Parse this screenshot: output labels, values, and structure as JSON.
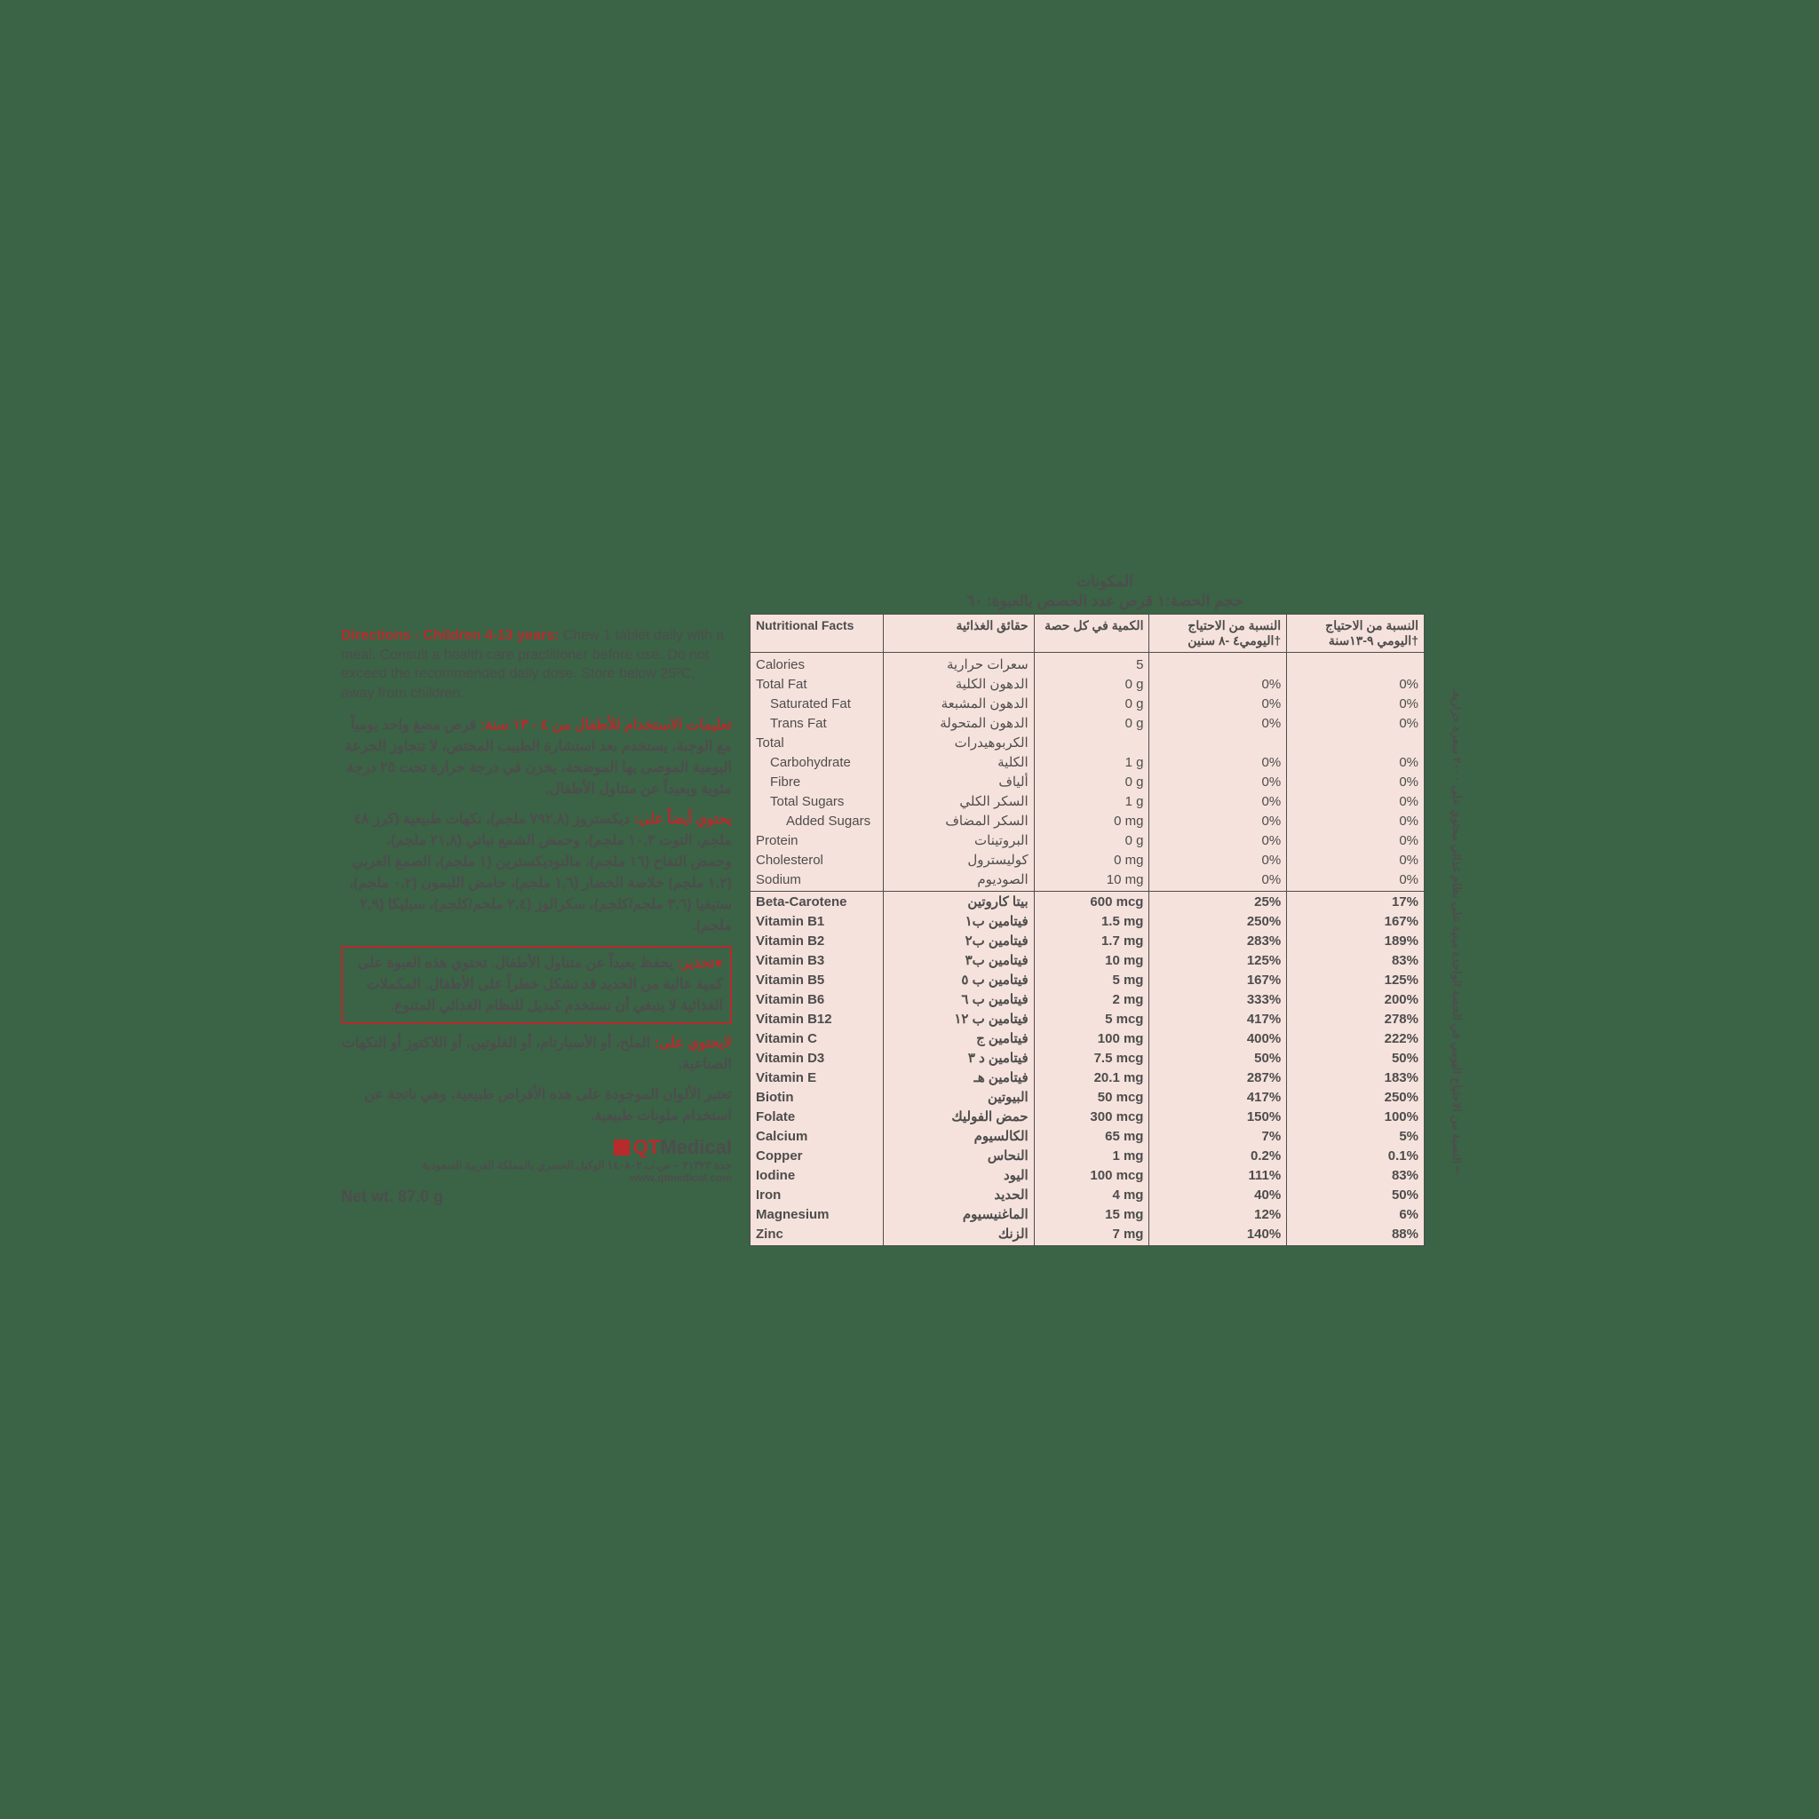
{
  "directions": {
    "en_heading": "Directions - Children 4-13 years:",
    "en_body": " Chew 1 tablet daily with a meal. Consult a health care practitioner before use. Do not exceed the recommended daily dose. Store below 25ºC, away from children.",
    "ar_heading_1": "تعليمات الاستخدام للأطفال من ٤ - ١٣ سنة:",
    "ar_body_1": " قرص مضغ واحد يومياً مع الوجبة، يستخدم بعد استشارة الطبيب المختص، لا تتجاوز الجرعة اليومية الموصى بها الموضحة، يخزن في درجة حرارة تحت ٢٥ درجة مئوية وبعيداً عن متناول الأطفال.",
    "ar_heading_2": "يحتوي أيضاً على:",
    "ar_body_2": " ديكستروز (٧٩٢,٨ ملجم)، نكهات طبيعية (كرز ٤٨ ملجم، التوت ١٠,٣ ملجم)، وحمض الشمع نباتي (٢١,٨ ملجم)، وحمض التفاح (١٦ ملجم)، مالتوديكسترين (١ ملجم)، الصمغ العربي (١,٢ ملجم) خلاصة الخضار (١,٦ ملجم)، حامض الليمون (٠,٢ ملجم)، ستيفيا (٣,٦ ملجم/كلجم)، سكرالوز (٢,٤ ملجم/كلجم)، سيليكا (٢,٩ ملجم).",
    "warn_heading": "●تحذير:",
    "warn_body": " يحفظ بعيداً عن متناول الأطفال. تحتوي هذه العبوة على كمية عالية من الحديد قد تشكل خطراً على الأطفال. المكملات الغذائية لا ينبغي أن تستخدم كبديل للنظام الغذائي المتنوع.",
    "ar_free_heading": "لايحتوي على:",
    "ar_free_body": " الملح، أو الأسبارتام، أو الغلوتين، أو اللاكتوز أو النكهات الصناعية.",
    "ar_colors": "تعتبر الألوان الموجودة على هذه الأقراص طبيعية، وهي ناتجة عن استخدام ملونات طبيعية.",
    "distributor": "جدة ٢١٣٢٣ – ص.ب.١٤٠٨٠٢ الوكيل الحصري بالمملكة العربية السعودية",
    "website": "www.qtmedical.com",
    "logo_g": "QT",
    "logo_rest": "Medical",
    "net_wt": "Net wt. 87.0 g"
  },
  "table": {
    "title": "المكونات",
    "subtitle": "حجم الحصة:١ قرص عدد الحصص بالعبوة: ٦٠",
    "side_note": "†النسبة من الاحتياج اليومي في الحصة الواحدة مبنية على نظام غذائي محتوي على ٢٠٠٠ سعرة حرارية.",
    "headers": {
      "h1_en": "Nutritional Facts",
      "h1_ar": "حقائق الغذائية",
      "h2_ar": "الكمية في كل حصة",
      "h3_ar": "النسبة من الاحتياج اليومي٤ -٨ سنين†",
      "h4_ar": "النسبة من الاحتياج اليومي ٩-١٣سنة†"
    },
    "section1": [
      {
        "en": "Calories",
        "ar": "سعرات حرارية",
        "amt": "5",
        "dv1": "",
        "dv2": "",
        "indent": 0
      },
      {
        "en": "Total Fat",
        "ar": "الدهون الكلية",
        "amt": "0 g",
        "dv1": "0%",
        "dv2": "0%",
        "indent": 0
      },
      {
        "en": "Saturated Fat",
        "ar": "الدهون المشبعة",
        "amt": "0 g",
        "dv1": "0%",
        "dv2": "0%",
        "indent": 1
      },
      {
        "en": "Trans Fat",
        "ar": "الدهون المتحولة",
        "amt": "0 g",
        "dv1": "0%",
        "dv2": "0%",
        "indent": 1
      },
      {
        "en": "Total",
        "ar": "الكربوهيدرات",
        "amt": "",
        "dv1": "",
        "dv2": "",
        "indent": 0
      },
      {
        "en": "Carbohydrate",
        "ar": "الكلية",
        "amt": "1 g",
        "dv1": "0%",
        "dv2": "0%",
        "indent": 1
      },
      {
        "en": "Fibre",
        "ar": "ألياف",
        "amt": "0 g",
        "dv1": "0%",
        "dv2": "0%",
        "indent": 1
      },
      {
        "en": "Total Sugars",
        "ar": "السكر الكلي",
        "amt": "1 g",
        "dv1": "0%",
        "dv2": "0%",
        "indent": 1
      },
      {
        "en": "Added Sugars",
        "ar": "السكر المضاف",
        "amt": "0 mg",
        "dv1": "0%",
        "dv2": "0%",
        "indent": 2
      },
      {
        "en": "Protein",
        "ar": "البروتينات",
        "amt": "0 g",
        "dv1": "0%",
        "dv2": "0%",
        "indent": 0
      },
      {
        "en": "Cholesterol",
        "ar": "كوليسترول",
        "amt": "0 mg",
        "dv1": "0%",
        "dv2": "0%",
        "indent": 0
      },
      {
        "en": "Sodium",
        "ar": "الصوديوم",
        "amt": "10 mg",
        "dv1": "0%",
        "dv2": "0%",
        "indent": 0
      }
    ],
    "section2": [
      {
        "en": "Beta-Carotene",
        "ar": "بيتا كاروتين",
        "amt": "600 mcg",
        "dv1": "25%",
        "dv2": "17%"
      },
      {
        "en": "Vitamin B1",
        "ar": "فيتامين ب١",
        "amt": "1.5 mg",
        "dv1": "250%",
        "dv2": "167%"
      },
      {
        "en": "Vitamin B2",
        "ar": "فيتامين ب٢",
        "amt": "1.7 mg",
        "dv1": "283%",
        "dv2": "189%"
      },
      {
        "en": "Vitamin B3",
        "ar": "فيتامين ب٣",
        "amt": "10 mg",
        "dv1": "125%",
        "dv2": "83%"
      },
      {
        "en": "Vitamin B5",
        "ar": "فيتامين ب ٥",
        "amt": "5 mg",
        "dv1": "167%",
        "dv2": "125%"
      },
      {
        "en": "Vitamin B6",
        "ar": "فيتامين ب ٦",
        "amt": "2 mg",
        "dv1": "333%",
        "dv2": "200%"
      },
      {
        "en": "Vitamin B12",
        "ar": "فيتامين ب ١٢",
        "amt": "5 mcg",
        "dv1": "417%",
        "dv2": "278%"
      },
      {
        "en": "Vitamin C",
        "ar": "فيتامين ج",
        "amt": "100 mg",
        "dv1": "400%",
        "dv2": "222%"
      },
      {
        "en": "Vitamin D3",
        "ar": "فيتامين د ٣",
        "amt": "7.5 mcg",
        "dv1": "50%",
        "dv2": "50%"
      },
      {
        "en": "Vitamin E",
        "ar": "فيتامين هـ",
        "amt": "20.1 mg",
        "dv1": "287%",
        "dv2": "183%"
      },
      {
        "en": "Biotin",
        "ar": "البيوتين",
        "amt": "50 mcg",
        "dv1": "417%",
        "dv2": "250%"
      },
      {
        "en": "Folate",
        "ar": "حمض الفوليك",
        "amt": "300 mcg",
        "dv1": "150%",
        "dv2": "100%"
      },
      {
        "en": "Calcium",
        "ar": "الكالسيوم",
        "amt": "65 mg",
        "dv1": "7%",
        "dv2": "5%"
      },
      {
        "en": "Copper",
        "ar": "النحاس",
        "amt": "1 mg",
        "dv1": "0.2%",
        "dv2": "0.1%"
      },
      {
        "en": "Iodine",
        "ar": "اليود",
        "amt": "100 mcg",
        "dv1": "111%",
        "dv2": "83%"
      },
      {
        "en": "Iron",
        "ar": "الحديد",
        "amt": "4 mg",
        "dv1": "40%",
        "dv2": "50%"
      },
      {
        "en": "Magnesium",
        "ar": "الماغنيسيوم",
        "amt": "15 mg",
        "dv1": "12%",
        "dv2": "6%"
      },
      {
        "en": "Zinc",
        "ar": "الزنك",
        "amt": "7 mg",
        "dv1": "140%",
        "dv2": "88%"
      }
    ]
  },
  "colors": {
    "bg": "#3b6346",
    "text": "#4d4d4d",
    "accent": "#b72b2c",
    "table_bg": "#f6e2dc"
  }
}
